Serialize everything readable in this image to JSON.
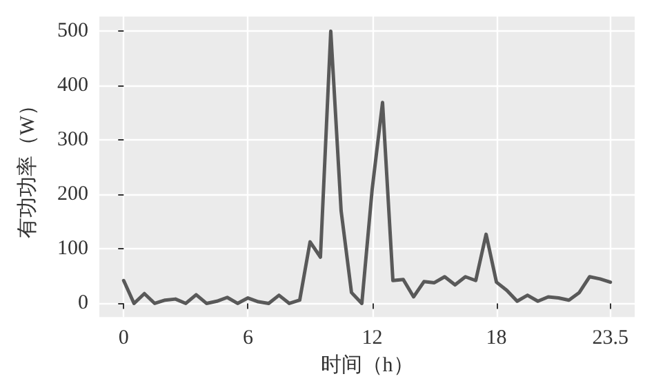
{
  "chart_data": {
    "type": "line",
    "xlabel": "时间（h）",
    "ylabel": "有功功率（W）",
    "x": [
      0,
      0.5,
      1,
      1.5,
      2,
      2.5,
      3,
      3.5,
      4,
      4.5,
      5,
      5.5,
      6,
      6.5,
      7,
      7.5,
      8,
      8.5,
      9,
      9.5,
      10,
      10.5,
      11,
      11.5,
      12,
      12.5,
      13,
      13.5,
      14,
      14.5,
      15,
      15.5,
      16,
      16.5,
      17,
      17.5,
      18,
      18.5,
      19,
      19.5,
      20,
      20.5,
      21,
      21.5,
      22,
      22.5,
      23,
      23.5
    ],
    "series": [
      {
        "color": "#595959",
        "values": [
          42,
          0,
          18,
          0,
          6,
          8,
          0,
          16,
          0,
          4,
          11,
          0,
          10,
          3,
          0,
          15,
          0,
          6,
          113,
          85,
          500,
          170,
          20,
          0,
          210,
          369,
          42,
          44,
          12,
          40,
          38,
          49,
          34,
          49,
          42,
          127,
          39,
          24,
          4,
          15,
          4,
          12,
          10,
          6,
          20,
          49,
          45,
          39
        ]
      }
    ],
    "xlim": [
      -1.175,
      24.675
    ],
    "xticks": [
      0,
      6,
      12,
      18,
      23.5
    ],
    "ylim": [
      -25,
      527
    ],
    "yticks": [
      0,
      100,
      200,
      300,
      400,
      500
    ],
    "grid": true,
    "marker": "none",
    "line_style": "solid"
  }
}
